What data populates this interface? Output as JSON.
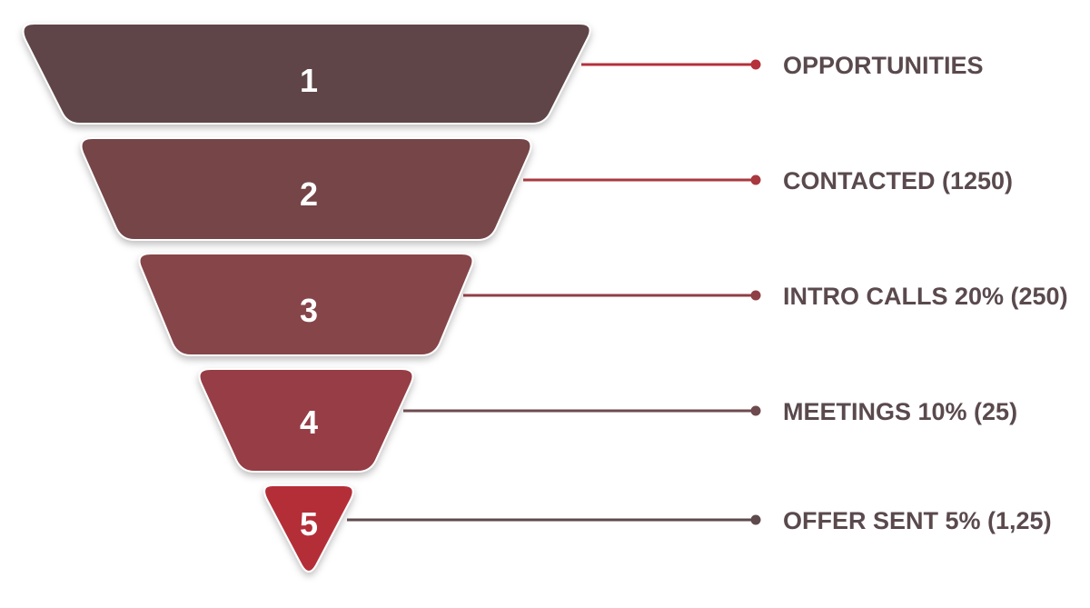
{
  "funnel": {
    "stages": [
      {
        "number": "1",
        "label": "OPPORTUNITIES",
        "fill": "#5e4447",
        "line_color": "#b5313b"
      },
      {
        "number": "2",
        "label": "CONTACTED (1250)",
        "fill": "#744447",
        "line_color": "#a8393f"
      },
      {
        "number": "3",
        "label": "INTRO CALLS 20% (250)",
        "fill": "#86454a",
        "line_color": "#8e3f45"
      },
      {
        "number": "4",
        "label": "MEETINGS 10% (25)",
        "fill": "#963e45",
        "line_color": "#6e4a4e"
      },
      {
        "number": "5",
        "label": "OFFER SENT 5% (1,25)",
        "fill": "#b42f38",
        "line_color": "#5e4a4d"
      }
    ],
    "label_color": "#5a4a4d"
  }
}
